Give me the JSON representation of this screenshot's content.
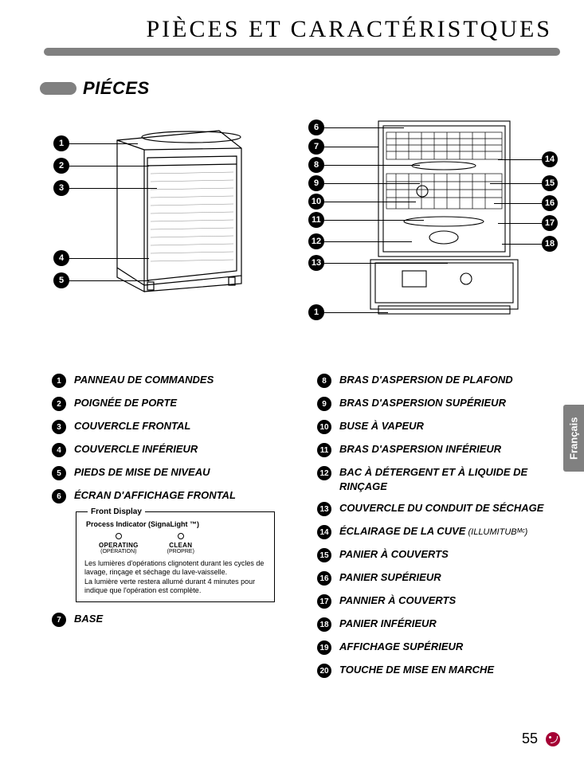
{
  "title": "PIÈCES ET CARACTÉRISTQUES",
  "section_title": "PIÉCES",
  "lang_tab": "Français",
  "page_number": "55",
  "colors": {
    "rule": "#808080",
    "pill": "#808080",
    "circle_bg": "#000000",
    "circle_fg": "#ffffff",
    "tab_bg": "#808080",
    "tab_fg": "#ffffff",
    "logo": "#a50034",
    "background": "#ffffff"
  },
  "callouts_left": [
    "1",
    "2",
    "3",
    "4",
    "5"
  ],
  "callouts_mid": [
    "6",
    "7",
    "8",
    "9",
    "10",
    "11",
    "12",
    "13",
    "1"
  ],
  "callouts_right": [
    "14",
    "15",
    "16",
    "17",
    "18"
  ],
  "legend_left": [
    {
      "n": "1",
      "label": "PANNEAU DE COMMANDES"
    },
    {
      "n": "2",
      "label": "POIGNÉE DE PORTE"
    },
    {
      "n": "3",
      "label": "COUVERCLE FRONTAL"
    },
    {
      "n": "4",
      "label": "COUVERCLE INFÉRIEUR"
    },
    {
      "n": "5",
      "label": "PIEDS DE MISE DE NIVEAU"
    },
    {
      "n": "6",
      "label": "ÉCRAN D'AFFICHAGE FRONTAL"
    }
  ],
  "legend_left_after": [
    {
      "n": "7",
      "label": "BASE"
    }
  ],
  "legend_right": [
    {
      "n": "8",
      "label": "BRAS D'ASPERSION DE PLAFOND"
    },
    {
      "n": "9",
      "label": "BRAS D'ASPERSION SUPÉRIEUR"
    },
    {
      "n": "10",
      "label": "BUSE À VAPEUR"
    },
    {
      "n": "11",
      "label": "BRAS D'ASPERSION INFÉRIEUR"
    },
    {
      "n": "12",
      "label": "BAC À DÉTERGENT ET À LIQUIDE DE RINÇAGE"
    },
    {
      "n": "13",
      "label": "COUVERCLE DU CONDUIT DE SÉCHAGE"
    },
    {
      "n": "14",
      "label": "ÉCLAIRAGE DE LA CUVE",
      "sub": "(ILLUMITUBᴹᶜ)"
    },
    {
      "n": "15",
      "label": "PANIER À COUVERTS"
    },
    {
      "n": "16",
      "label": "PANIER SUPÉRIEUR"
    },
    {
      "n": "17",
      "label": "PANNIER À COUVERTS"
    },
    {
      "n": "18",
      "label": "PANIER INFÉRIEUR"
    },
    {
      "n": "19",
      "label": "AFFICHAGE SUPÉRIEUR"
    },
    {
      "n": "20",
      "label": "TOUCHE DE MISE EN MARCHE"
    }
  ],
  "front_display": {
    "title": "Front Display",
    "sub": "Process Indicator (SignaLight ™)",
    "operating": "OPERATING",
    "operating_sub": "(OPÉRATION)",
    "clean": "CLEAN",
    "clean_sub": "(PROPRE)",
    "text1": "Les lumières d'opérations clignotent durant les cycles de lavage, rinçage et séchage du lave-vaisselle.",
    "text2": "La lumière verte restera allumé durant 4 minutes pour indique que l'opération est complète."
  }
}
